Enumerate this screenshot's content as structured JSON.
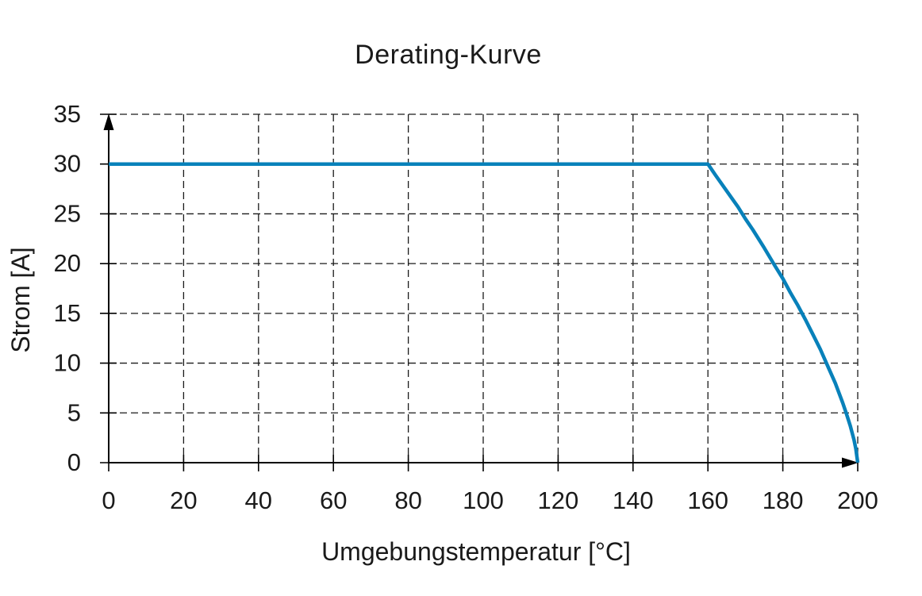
{
  "page": {
    "background": "#ffffff"
  },
  "chart_data": {
    "type": "line",
    "title": "Derating-Kurve",
    "xlabel": "Umgebungstemperatur [°C]",
    "ylabel": "Strom [A]",
    "xlim": [
      0,
      200
    ],
    "ylim": [
      0,
      35
    ],
    "x_ticks": [
      0,
      20,
      40,
      60,
      80,
      100,
      120,
      140,
      160,
      180,
      200
    ],
    "y_ticks": [
      0,
      5,
      10,
      15,
      20,
      25,
      30,
      35
    ],
    "grid": "dashed",
    "legend": "none",
    "axis_arrows": true,
    "colors": {
      "line": "#0881ba",
      "axis": "#000000",
      "grid": "#1a1a1a",
      "text": "#1a1a1a"
    },
    "series": [
      {
        "name": "Derating",
        "color": "#0881ba",
        "points": [
          [
            0,
            30
          ],
          [
            160,
            30
          ],
          [
            162,
            28.9
          ],
          [
            165,
            27.3
          ],
          [
            168,
            25.7
          ],
          [
            170,
            24.5
          ],
          [
            172,
            23.4
          ],
          [
            175,
            21.6
          ],
          [
            178,
            19.7
          ],
          [
            180,
            18.5
          ],
          [
            182,
            17.1
          ],
          [
            184,
            15.8
          ],
          [
            186,
            14.4
          ],
          [
            188,
            12.9
          ],
          [
            190,
            11.4
          ],
          [
            192,
            9.7
          ],
          [
            194,
            8.0
          ],
          [
            196,
            6.0
          ],
          [
            197,
            4.9
          ],
          [
            198,
            3.7
          ],
          [
            199,
            2.3
          ],
          [
            199.5,
            1.4
          ],
          [
            200,
            0
          ]
        ]
      }
    ]
  }
}
